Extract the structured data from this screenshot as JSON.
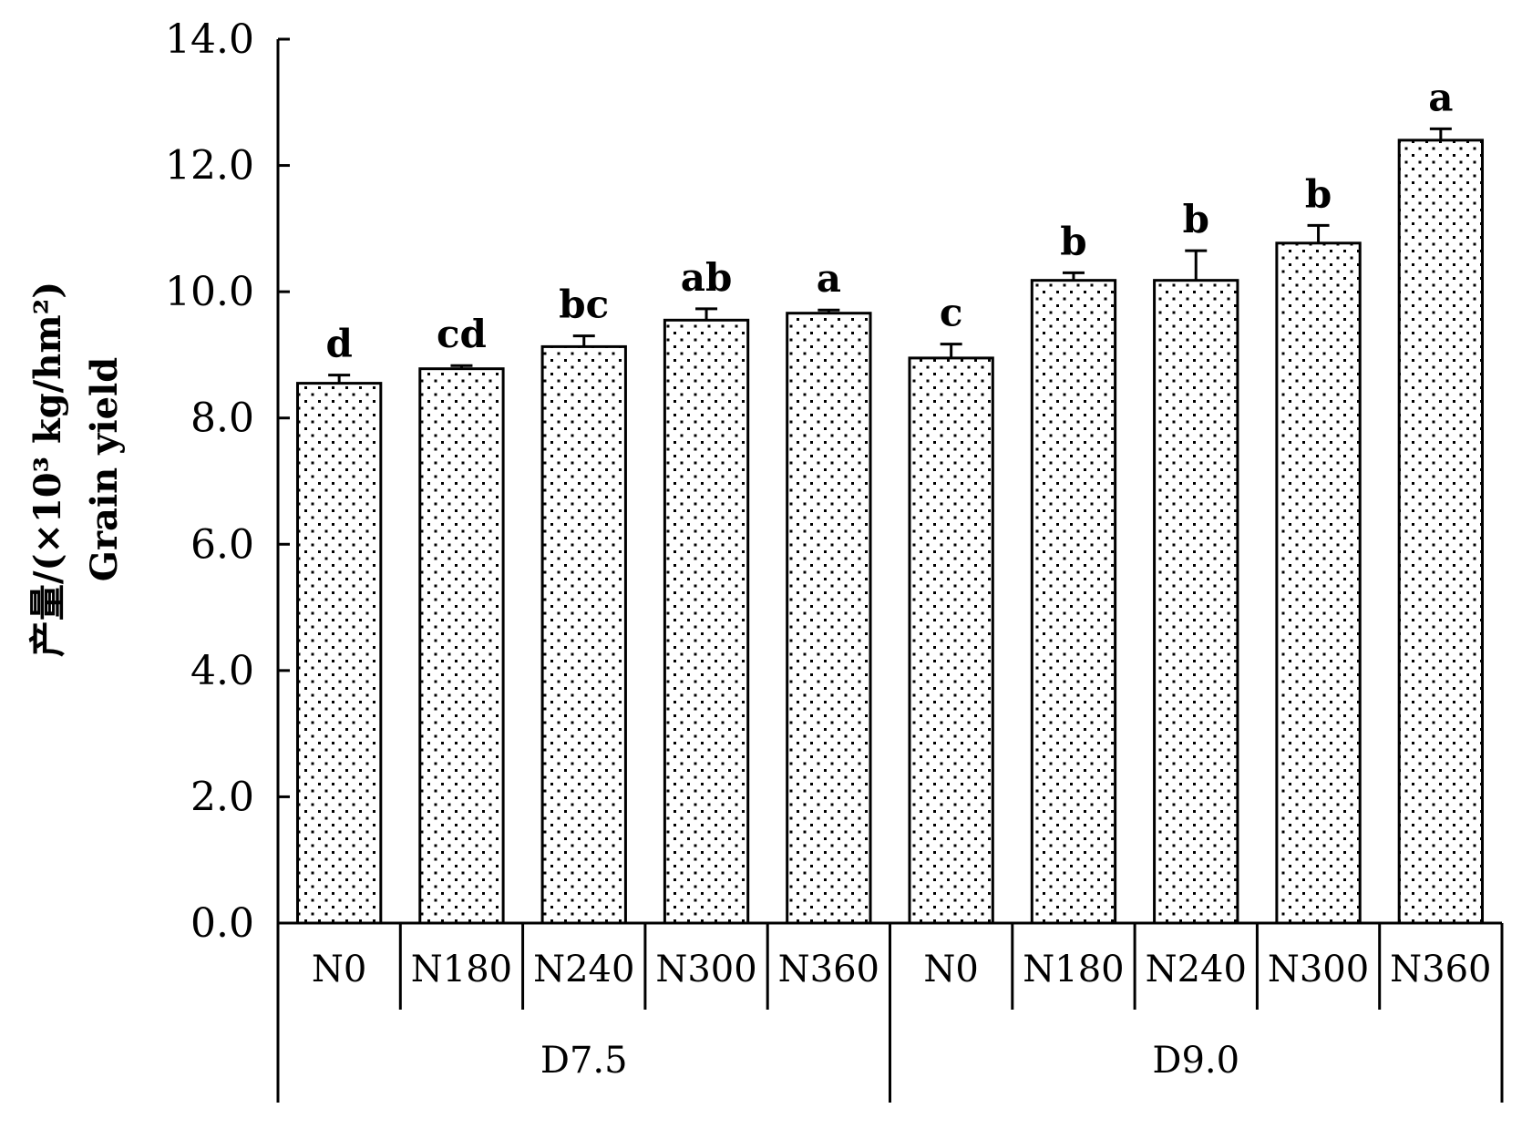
{
  "chart_data": {
    "type": "bar",
    "ylabel_lines": [
      "产量/(×10³ kg/hm²)",
      "Grain yield"
    ],
    "ylim": [
      0,
      14
    ],
    "yticks": [
      "0.0",
      "2.0",
      "4.0",
      "6.0",
      "8.0",
      "10.0",
      "12.0",
      "14.0"
    ],
    "grid": false,
    "fill_pattern": "dotted",
    "groups": [
      {
        "label": "D7.5",
        "categories": [
          "N0",
          "N180",
          "N240",
          "N300",
          "N360"
        ]
      },
      {
        "label": "D9.0",
        "categories": [
          "N0",
          "N180",
          "N240",
          "N300",
          "N360"
        ]
      }
    ],
    "values": [
      8.55,
      8.78,
      9.13,
      9.55,
      9.66,
      8.95,
      10.18,
      10.18,
      10.77,
      12.4
    ],
    "errors": [
      0.13,
      0.05,
      0.17,
      0.18,
      0.05,
      0.22,
      0.12,
      0.47,
      0.28,
      0.18
    ],
    "significance": [
      "d",
      "cd",
      "bc",
      "ab",
      "a",
      "c",
      "b",
      "b",
      "b",
      "a"
    ]
  }
}
